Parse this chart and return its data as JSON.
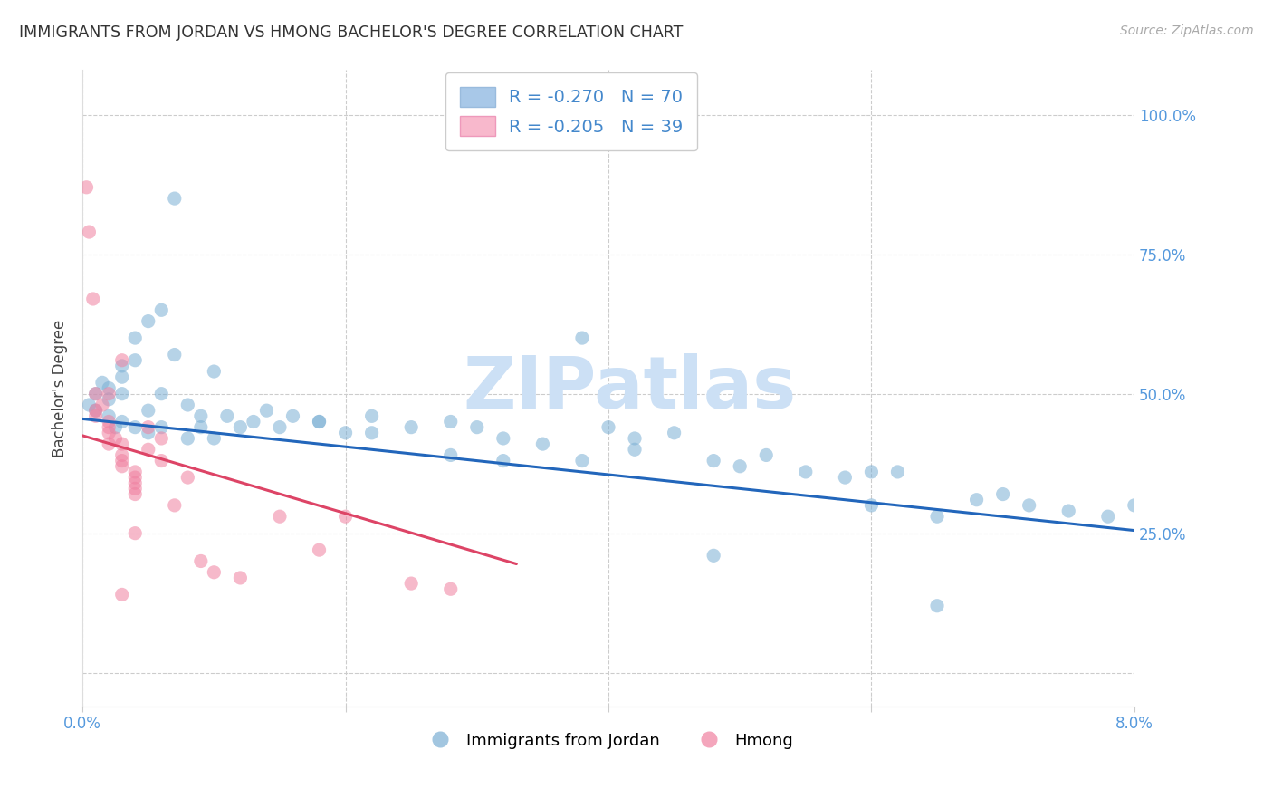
{
  "title": "IMMIGRANTS FROM JORDAN VS HMONG BACHELOR'S DEGREE CORRELATION CHART",
  "source": "Source: ZipAtlas.com",
  "ylabel": "Bachelor's Degree",
  "y_ticks": [
    0.0,
    0.25,
    0.5,
    0.75,
    1.0
  ],
  "y_tick_labels_right": [
    "",
    "25.0%",
    "50.0%",
    "75.0%",
    "100.0%"
  ],
  "x_min": 0.0,
  "x_max": 0.08,
  "y_min": -0.06,
  "y_max": 1.08,
  "blue_scatter_color": "#7bafd4",
  "pink_scatter_color": "#f080a0",
  "blue_line_color": "#2266bb",
  "pink_line_color": "#dd4466",
  "legend_blue_fill": "#a8c8e8",
  "legend_pink_fill": "#f8b8cc",
  "grid_color": "#cccccc",
  "watermark_color": "#cce0f5",
  "title_color": "#333333",
  "axis_tick_color": "#5599dd",
  "source_color": "#aaaaaa",
  "legend_text_color": "#4488cc",
  "blue_R": "-0.270",
  "blue_N": "70",
  "pink_R": "-0.205",
  "pink_N": "39",
  "blue_line_x": [
    0.0,
    0.08
  ],
  "blue_line_y": [
    0.455,
    0.255
  ],
  "pink_line_x": [
    0.0,
    0.033
  ],
  "pink_line_y": [
    0.425,
    0.195
  ],
  "blue_scatter_x": [
    0.0005,
    0.001,
    0.001,
    0.0015,
    0.002,
    0.002,
    0.002,
    0.0025,
    0.003,
    0.003,
    0.003,
    0.003,
    0.004,
    0.004,
    0.004,
    0.005,
    0.005,
    0.005,
    0.006,
    0.006,
    0.006,
    0.007,
    0.007,
    0.008,
    0.008,
    0.009,
    0.009,
    0.01,
    0.01,
    0.011,
    0.012,
    0.013,
    0.014,
    0.015,
    0.016,
    0.018,
    0.02,
    0.022,
    0.025,
    0.028,
    0.03,
    0.032,
    0.035,
    0.038,
    0.04,
    0.042,
    0.045,
    0.048,
    0.05,
    0.052,
    0.055,
    0.058,
    0.06,
    0.062,
    0.065,
    0.068,
    0.07,
    0.072,
    0.075,
    0.078,
    0.08,
    0.038,
    0.042,
    0.048,
    0.022,
    0.028,
    0.018,
    0.065,
    0.032,
    0.06
  ],
  "blue_scatter_y": [
    0.48,
    0.5,
    0.47,
    0.52,
    0.49,
    0.51,
    0.46,
    0.44,
    0.55,
    0.53,
    0.45,
    0.5,
    0.6,
    0.44,
    0.56,
    0.63,
    0.47,
    0.43,
    0.65,
    0.5,
    0.44,
    0.85,
    0.57,
    0.42,
    0.48,
    0.44,
    0.46,
    0.54,
    0.42,
    0.46,
    0.44,
    0.45,
    0.47,
    0.44,
    0.46,
    0.45,
    0.43,
    0.46,
    0.44,
    0.45,
    0.44,
    0.42,
    0.41,
    0.38,
    0.44,
    0.42,
    0.43,
    0.38,
    0.37,
    0.39,
    0.36,
    0.35,
    0.3,
    0.36,
    0.28,
    0.31,
    0.32,
    0.3,
    0.29,
    0.28,
    0.3,
    0.6,
    0.4,
    0.21,
    0.43,
    0.39,
    0.45,
    0.12,
    0.38,
    0.36
  ],
  "pink_scatter_x": [
    0.0003,
    0.0005,
    0.0008,
    0.001,
    0.001,
    0.001,
    0.0015,
    0.002,
    0.002,
    0.002,
    0.002,
    0.0025,
    0.003,
    0.003,
    0.003,
    0.003,
    0.003,
    0.004,
    0.004,
    0.004,
    0.004,
    0.004,
    0.005,
    0.005,
    0.006,
    0.006,
    0.007,
    0.008,
    0.009,
    0.01,
    0.012,
    0.015,
    0.018,
    0.02,
    0.025,
    0.028,
    0.003,
    0.002,
    0.004
  ],
  "pink_scatter_y": [
    0.87,
    0.79,
    0.67,
    0.5,
    0.47,
    0.46,
    0.48,
    0.44,
    0.45,
    0.5,
    0.43,
    0.42,
    0.56,
    0.41,
    0.39,
    0.38,
    0.37,
    0.36,
    0.35,
    0.34,
    0.33,
    0.32,
    0.4,
    0.44,
    0.42,
    0.38,
    0.3,
    0.35,
    0.2,
    0.18,
    0.17,
    0.28,
    0.22,
    0.28,
    0.16,
    0.15,
    0.14,
    0.41,
    0.25
  ]
}
